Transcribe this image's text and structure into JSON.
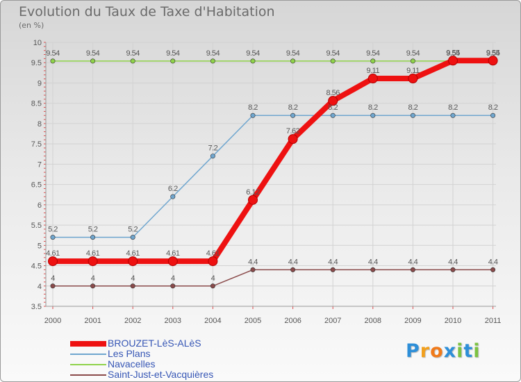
{
  "title": "Evolution du Taux de Taxe d'Habitation",
  "subtitle": "(en %)",
  "logo": {
    "text": "Proxiti",
    "letters": [
      "P",
      "r",
      "o",
      "x",
      "i",
      "t",
      "i"
    ],
    "colors": [
      "#2e8fd8",
      "#f2a01e",
      "#f07a1a",
      "#2e8fd8",
      "#7cc242",
      "#2e8fd8",
      "#7cc242"
    ]
  },
  "chart_data": {
    "type": "line",
    "categories": [
      "2000",
      "2001",
      "2002",
      "2003",
      "2004",
      "2005",
      "2006",
      "2007",
      "2008",
      "2009",
      "2010",
      "2011"
    ],
    "ylim": [
      3.5,
      10
    ],
    "yticks": [
      "3.5",
      "4",
      "4.5",
      "5",
      "5.5",
      "6",
      "6.5",
      "7",
      "7.5",
      "8",
      "8.5",
      "9",
      "9.5",
      "10"
    ],
    "legend_position": "bottom-left",
    "series": [
      {
        "name": "BROUZET-LèS-ALèS",
        "color": "#ee1111",
        "highlight": true,
        "values": [
          4.61,
          4.61,
          4.61,
          4.61,
          4.61,
          6.12,
          7.62,
          8.56,
          9.11,
          9.11,
          9.55,
          9.55
        ],
        "labels": [
          "4.61",
          "4.61",
          "4.61",
          "4.61",
          "4.61",
          "6.12",
          "7.62",
          "8.56",
          "9.11",
          "9.11",
          "9.55",
          "9.55"
        ]
      },
      {
        "name": "Les Plans",
        "color": "#6fa6cf",
        "highlight": false,
        "values": [
          5.2,
          5.2,
          5.2,
          6.2,
          7.2,
          8.2,
          8.2,
          8.2,
          8.2,
          8.2,
          8.2,
          8.2
        ],
        "labels": [
          "5.2",
          "5.2",
          "5.2",
          "6.2",
          "7.2",
          "8.2",
          "8.2",
          "8.2",
          "8.2",
          "8.2",
          "8.2",
          "8.2"
        ]
      },
      {
        "name": "Navacelles",
        "color": "#8fd24a",
        "highlight": false,
        "values": [
          9.54,
          9.54,
          9.54,
          9.54,
          9.54,
          9.54,
          9.54,
          9.54,
          9.54,
          9.54,
          9.54,
          9.54
        ],
        "labels": [
          "9.54",
          "9.54",
          "9.54",
          "9.54",
          "9.54",
          "9.54",
          "9.54",
          "9.54",
          "9.54",
          "9.54",
          "9.54",
          "9.54"
        ]
      },
      {
        "name": "Saint-Just-et-Vacquières",
        "color": "#8a4a4a",
        "highlight": false,
        "values": [
          4,
          4,
          4,
          4,
          4,
          4.4,
          4.4,
          4.4,
          4.4,
          4.4,
          4.4,
          4.4
        ],
        "labels": [
          "4",
          "4",
          "4",
          "4",
          "4",
          "4.4",
          "4.4",
          "4.4",
          "4.4",
          "4.4",
          "4.4",
          "4.4"
        ]
      }
    ]
  }
}
